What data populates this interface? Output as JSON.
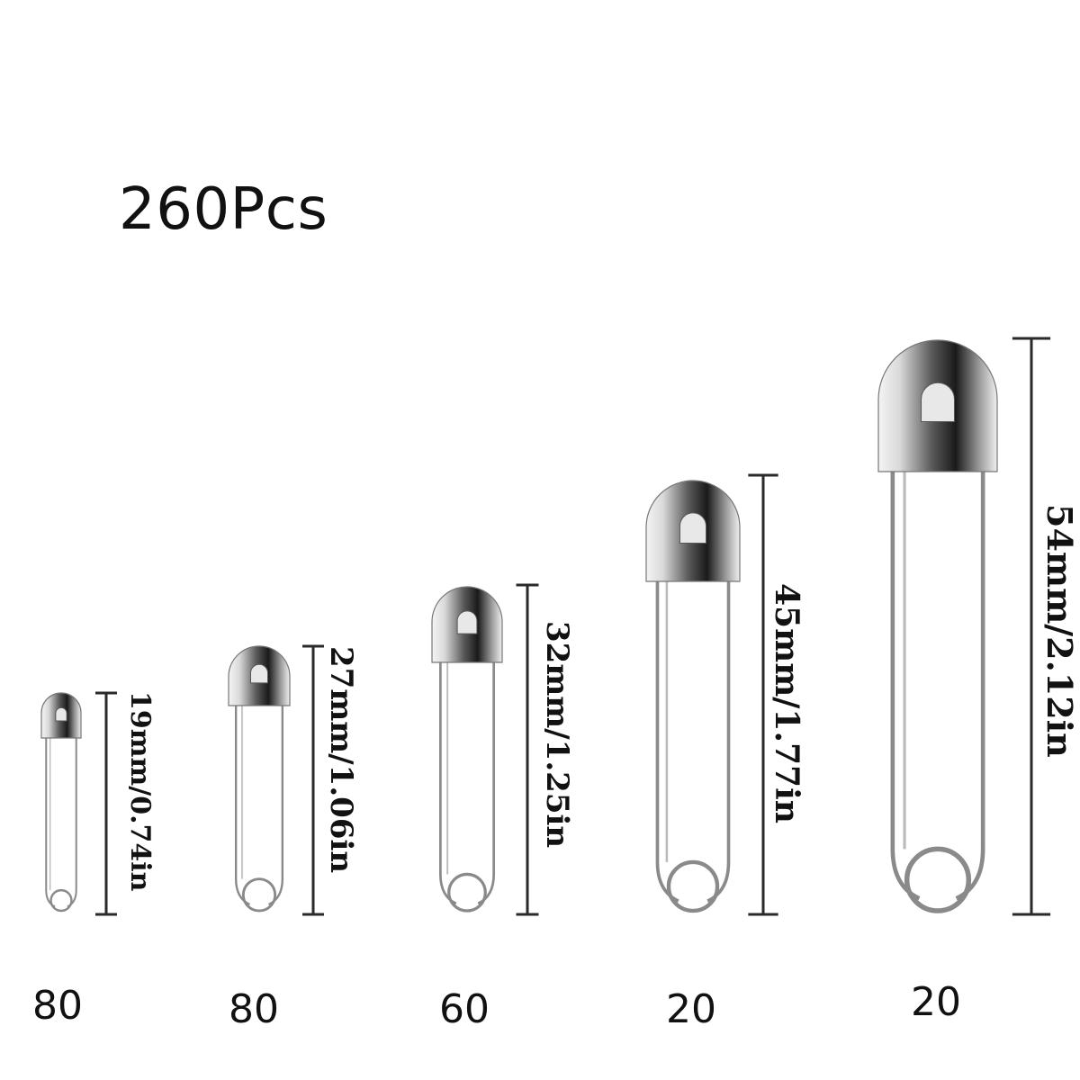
{
  "title": "260Pcs",
  "colors": {
    "metal_light": "#f2f2f2",
    "metal_dark": "#1e1e1e",
    "wire": "#8a8a8a",
    "ruler": "#2a2a2a"
  },
  "pins": [
    {
      "size_label": "19mm/0.74in",
      "count": "80"
    },
    {
      "size_label": "27mm/1.06in",
      "count": "80"
    },
    {
      "size_label": "32mm/1.25in",
      "count": "60"
    },
    {
      "size_label": "45mm/1.77in",
      "count": "20"
    },
    {
      "size_label": "54mm/2.12in",
      "count": "20"
    }
  ]
}
